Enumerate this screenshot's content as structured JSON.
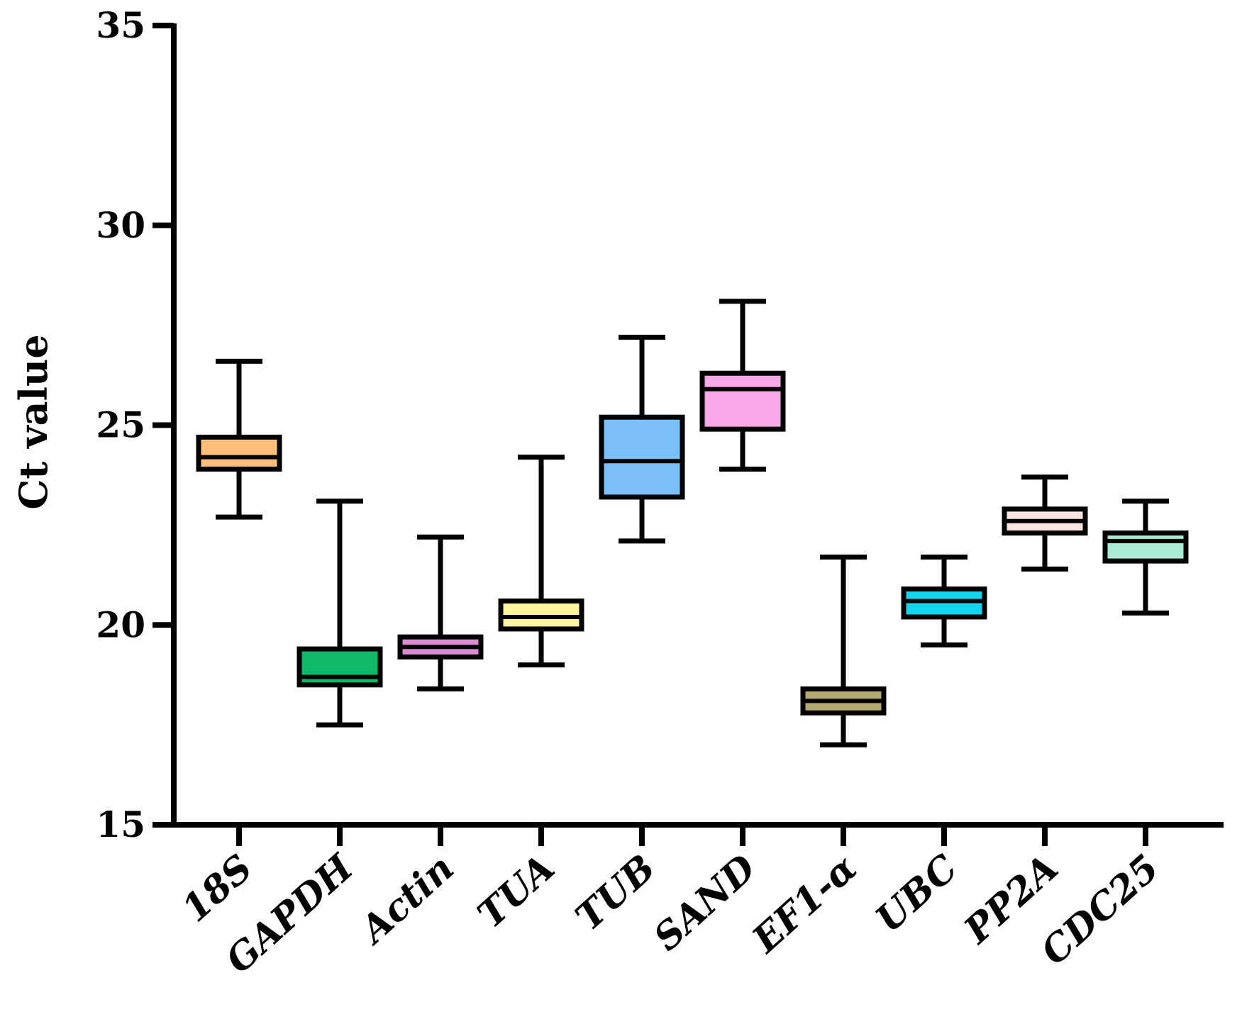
{
  "chart_data": {
    "type": "boxplot",
    "title": "",
    "xlabel": "",
    "ylabel": "Ct value",
    "ylim": [
      15,
      35
    ],
    "yticks": [
      15,
      20,
      25,
      30,
      35
    ],
    "grid": false,
    "legend": "none",
    "categories": [
      "18S",
      "GAPDH",
      "Actin",
      "TUA",
      "TUB",
      "SAND",
      "EF1-α",
      "UBC",
      "PP2A",
      "CDC25"
    ],
    "boxes": [
      {
        "name": "18S",
        "min": 22.7,
        "q1": 23.9,
        "median": 24.2,
        "q3": 24.7,
        "max": 26.6,
        "color": "#FFC07A"
      },
      {
        "name": "GAPDH",
        "min": 17.5,
        "q1": 18.5,
        "median": 18.7,
        "q3": 19.4,
        "max": 23.1,
        "color": "#10B86A"
      },
      {
        "name": "Actin",
        "min": 18.4,
        "q1": 19.2,
        "median": 19.45,
        "q3": 19.7,
        "max": 22.2,
        "color": "#D98BD3"
      },
      {
        "name": "TUA",
        "min": 19.0,
        "q1": 19.9,
        "median": 20.2,
        "q3": 20.6,
        "max": 24.2,
        "color": "#FFF59A"
      },
      {
        "name": "TUB",
        "min": 22.1,
        "q1": 23.2,
        "median": 24.1,
        "q3": 25.2,
        "max": 27.2,
        "color": "#7BBEF8"
      },
      {
        "name": "SAND",
        "min": 23.9,
        "q1": 24.9,
        "median": 25.9,
        "q3": 26.3,
        "max": 28.1,
        "color": "#F8A8E6"
      },
      {
        "name": "EF1-α",
        "min": 17.0,
        "q1": 17.8,
        "median": 18.1,
        "q3": 18.4,
        "max": 21.7,
        "color": "#B3AA72"
      },
      {
        "name": "UBC",
        "min": 19.5,
        "q1": 20.2,
        "median": 20.6,
        "q3": 20.9,
        "max": 21.7,
        "color": "#12D5F2"
      },
      {
        "name": "PP2A",
        "min": 21.4,
        "q1": 22.3,
        "median": 22.6,
        "q3": 22.9,
        "max": 23.7,
        "color": "#FCE4E0"
      },
      {
        "name": "CDC25",
        "min": 20.3,
        "q1": 21.6,
        "median": 22.1,
        "q3": 22.3,
        "max": 23.1,
        "color": "#A9EBD6"
      }
    ]
  }
}
